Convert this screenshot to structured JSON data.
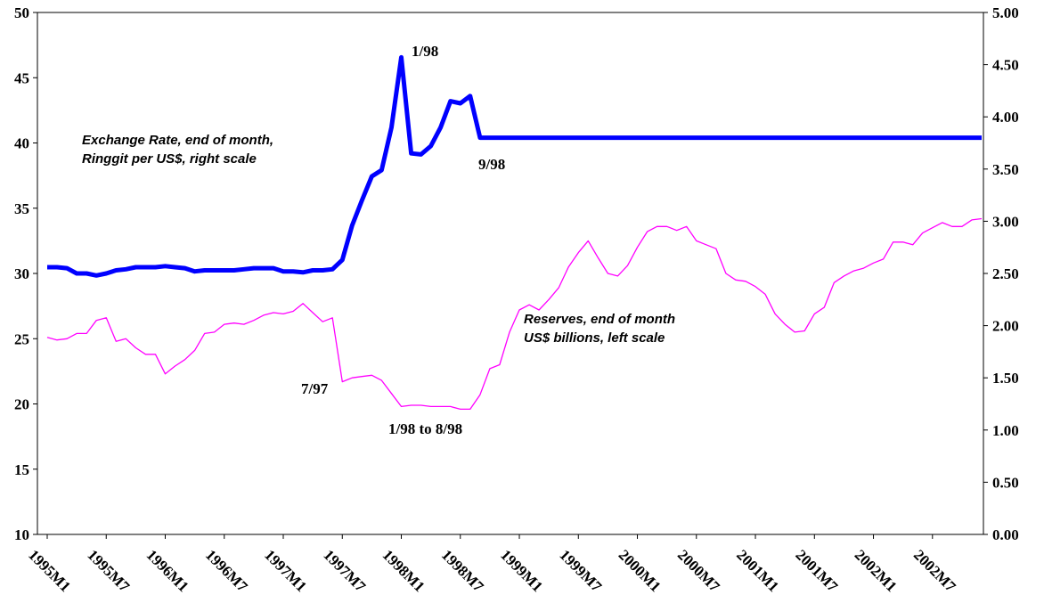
{
  "chart_data": {
    "type": "line",
    "categories": [
      "1995M1",
      null,
      null,
      null,
      null,
      null,
      "1995M7",
      null,
      null,
      null,
      null,
      null,
      "1996M1",
      null,
      null,
      null,
      null,
      null,
      "1996M7",
      null,
      null,
      null,
      null,
      null,
      "1997M1",
      null,
      null,
      null,
      null,
      null,
      "1997M7",
      null,
      null,
      null,
      null,
      null,
      "1998M1",
      null,
      null,
      null,
      null,
      null,
      "1998M7",
      null,
      null,
      null,
      null,
      null,
      "1999M1",
      null,
      null,
      null,
      null,
      null,
      "1999M7",
      null,
      null,
      null,
      null,
      null,
      "2000M1",
      null,
      null,
      null,
      null,
      null,
      "2000M7",
      null,
      null,
      null,
      null,
      null,
      "2001M1",
      null,
      null,
      null,
      null,
      null,
      "2001M7",
      null,
      null,
      null,
      null,
      null,
      "2002M1",
      null,
      null,
      null,
      null,
      null,
      "2002M7",
      null,
      null,
      null,
      null,
      null
    ],
    "series": [
      {
        "name": "Exchange Rate, end of month,\nRinggit per US$, right scale",
        "color": "#0000ff",
        "axis": "y2",
        "values": [
          2.56,
          2.56,
          2.55,
          2.5,
          2.5,
          2.48,
          2.5,
          2.53,
          2.54,
          2.56,
          2.56,
          2.56,
          2.57,
          2.56,
          2.55,
          2.52,
          2.53,
          2.53,
          2.53,
          2.53,
          2.54,
          2.55,
          2.55,
          2.55,
          2.52,
          2.52,
          2.51,
          2.53,
          2.53,
          2.54,
          2.63,
          2.96,
          3.2,
          3.43,
          3.49,
          3.9,
          4.57,
          3.65,
          3.64,
          3.72,
          3.9,
          4.15,
          4.13,
          4.2,
          3.8,
          3.8,
          3.8,
          3.8,
          3.8,
          3.8,
          3.8,
          3.8,
          3.8,
          3.8,
          3.8,
          3.8,
          3.8,
          3.8,
          3.8,
          3.8,
          3.8,
          3.8,
          3.8,
          3.8,
          3.8,
          3.8,
          3.8,
          3.8,
          3.8,
          3.8,
          3.8,
          3.8,
          3.8,
          3.8,
          3.8,
          3.8,
          3.8,
          3.8,
          3.8,
          3.8,
          3.8,
          3.8,
          3.8,
          3.8,
          3.8,
          3.8,
          3.8,
          3.8,
          3.8,
          3.8,
          3.8,
          3.8,
          3.8,
          3.8,
          3.8,
          3.8
        ]
      },
      {
        "name": "Reserves, end of month\nUS$ billions, left scale",
        "color": "#ff00ff",
        "values": [
          25.1,
          24.9,
          25.0,
          25.4,
          25.4,
          26.4,
          26.6,
          24.8,
          25.0,
          24.3,
          23.8,
          23.8,
          22.3,
          22.9,
          23.4,
          24.1,
          25.4,
          25.5,
          26.1,
          26.2,
          26.1,
          26.4,
          26.8,
          27.0,
          26.9,
          27.1,
          27.7,
          27.0,
          26.3,
          26.6,
          21.7,
          22.0,
          22.1,
          22.2,
          21.8,
          20.8,
          19.8,
          19.9,
          19.9,
          19.8,
          19.8,
          19.8,
          19.6,
          19.6,
          20.7,
          22.7,
          23.0,
          25.5,
          27.2,
          27.6,
          27.2,
          28.0,
          28.9,
          30.5,
          31.6,
          32.5,
          31.2,
          30.0,
          29.8,
          30.6,
          32.0,
          33.2,
          33.6,
          33.6,
          33.3,
          33.6,
          32.5,
          32.2,
          31.9,
          30.0,
          29.5,
          29.4,
          29.0,
          28.4,
          26.9,
          26.1,
          25.5,
          25.6,
          26.9,
          27.4,
          29.3,
          29.8,
          30.2,
          30.4,
          30.8,
          31.1,
          32.4,
          32.4,
          32.2,
          33.1,
          33.5,
          33.9,
          33.6,
          33.6,
          34.1,
          34.2
        ]
      }
    ],
    "ylim": [
      10,
      50
    ],
    "yticks": [
      10,
      15,
      20,
      25,
      30,
      35,
      40,
      45,
      50
    ],
    "y2lim": [
      0,
      5
    ],
    "y2ticks": [
      {
        "value": 0,
        "label": "0.00"
      },
      {
        "value": 0.5,
        "label": "0.50"
      },
      {
        "value": 1,
        "label": "1.00"
      },
      {
        "value": 1.5,
        "label": "1.50"
      },
      {
        "value": 2,
        "label": "2.00"
      },
      {
        "value": 2.5,
        "label": "2.50"
      },
      {
        "value": 3,
        "label": "3.00"
      },
      {
        "value": 3.5,
        "label": "3.50"
      },
      {
        "value": 4,
        "label": "4.00"
      },
      {
        "value": 4.5,
        "label": "4.50"
      },
      {
        "value": 5,
        "label": "5.00"
      }
    ],
    "annotations": [
      "1/98",
      "9/98",
      "7/97",
      "1/98 to 8/98"
    ],
    "grid": false
  }
}
